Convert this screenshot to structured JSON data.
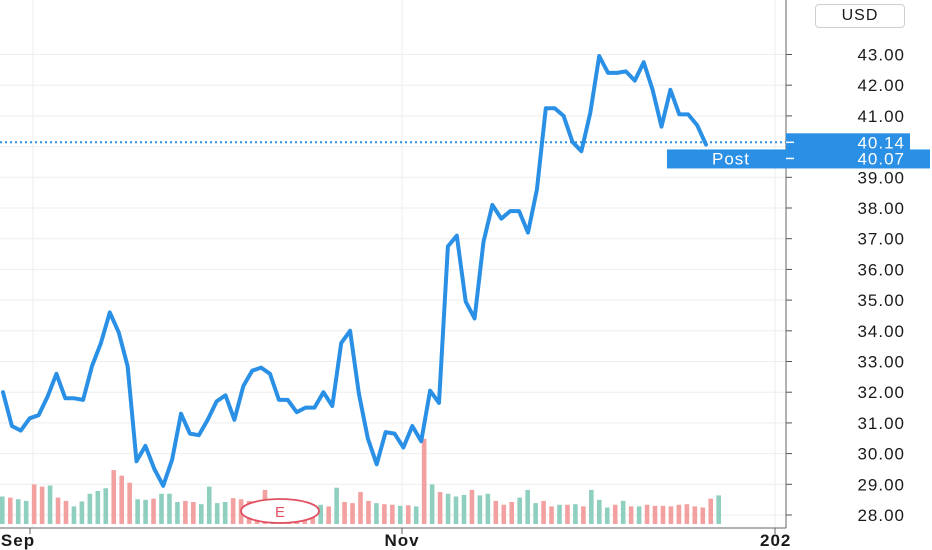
{
  "currency": "USD",
  "chart_data": {
    "type": "line",
    "y_ticks": [
      "28.00",
      "29.00",
      "30.00",
      "31.00",
      "32.00",
      "33.00",
      "34.00",
      "35.00",
      "36.00",
      "37.00",
      "38.00",
      "39.00",
      "40.00",
      "41.00",
      "42.00",
      "43.00"
    ],
    "ylim": [
      27.6,
      44.3
    ],
    "x_ticks": [
      "Sep",
      "Nov",
      "202"
    ],
    "grid": true,
    "series": [
      {
        "values": [
          32.0,
          30.9,
          30.75,
          31.15,
          31.25,
          31.85,
          32.6,
          31.8,
          31.8,
          31.75,
          32.85,
          33.6,
          34.6,
          33.95,
          32.85,
          29.75,
          30.25,
          29.5,
          28.95,
          29.8,
          31.3,
          30.65,
          30.6,
          31.1,
          31.7,
          31.9,
          31.1,
          32.2,
          32.7,
          32.8,
          32.6,
          31.75,
          31.75,
          31.35,
          31.5,
          31.5,
          32.0,
          31.55,
          33.6,
          34.0,
          31.95,
          30.5,
          29.65,
          30.7,
          30.65,
          30.2,
          30.9,
          30.4,
          32.05,
          31.65,
          36.75,
          37.1,
          34.95,
          34.4,
          36.9,
          38.1,
          37.65,
          37.9,
          37.9,
          37.2,
          38.6,
          41.25,
          41.25,
          41.0,
          40.15,
          39.85,
          41.1,
          42.95,
          42.4,
          42.4,
          42.45,
          42.15,
          42.75,
          41.85,
          40.65,
          41.85,
          41.05,
          41.05,
          40.7,
          40.07
        ],
        "color": "#2a90e6"
      }
    ],
    "volume": [
      {
        "v": 0.5,
        "c": "#8fcfbf"
      },
      {
        "v": 0.48,
        "c": "#f2a0a0"
      },
      {
        "v": 0.45,
        "c": "#8fcfbf"
      },
      {
        "v": 0.42,
        "c": "#8fcfbf"
      },
      {
        "v": 0.72,
        "c": "#f2a0a0"
      },
      {
        "v": 0.68,
        "c": "#f2a0a0"
      },
      {
        "v": 0.7,
        "c": "#8fcfbf"
      },
      {
        "v": 0.48,
        "c": "#f2a0a0"
      },
      {
        "v": 0.42,
        "c": "#f2a0a0"
      },
      {
        "v": 0.32,
        "c": "#8fcfbf"
      },
      {
        "v": 0.41,
        "c": "#8fcfbf"
      },
      {
        "v": 0.55,
        "c": "#8fcfbf"
      },
      {
        "v": 0.6,
        "c": "#8fcfbf"
      },
      {
        "v": 0.65,
        "c": "#8fcfbf"
      },
      {
        "v": 0.98,
        "c": "#f2a0a0"
      },
      {
        "v": 0.88,
        "c": "#f2a0a0"
      },
      {
        "v": 0.75,
        "c": "#f2a0a0"
      },
      {
        "v": 0.45,
        "c": "#8fcfbf"
      },
      {
        "v": 0.44,
        "c": "#8fcfbf"
      },
      {
        "v": 0.46,
        "c": "#f2a0a0"
      },
      {
        "v": 0.55,
        "c": "#8fcfbf"
      },
      {
        "v": 0.55,
        "c": "#8fcfbf"
      },
      {
        "v": 0.4,
        "c": "#8fcfbf"
      },
      {
        "v": 0.42,
        "c": "#f2a0a0"
      },
      {
        "v": 0.4,
        "c": "#f2a0a0"
      },
      {
        "v": 0.36,
        "c": "#8fcfbf"
      },
      {
        "v": 0.68,
        "c": "#8fcfbf"
      },
      {
        "v": 0.38,
        "c": "#8fcfbf"
      },
      {
        "v": 0.4,
        "c": "#8fcfbf"
      },
      {
        "v": 0.47,
        "c": "#f2a0a0"
      },
      {
        "v": 0.45,
        "c": "#f2a0a0"
      },
      {
        "v": 0.42,
        "c": "#f2a0a0"
      },
      {
        "v": 0.38,
        "c": "#f2a0a0"
      },
      {
        "v": 0.62,
        "c": "#f2a0a0"
      },
      {
        "v": 0.4,
        "c": "#8fcfbf"
      },
      {
        "v": 0.38,
        "c": "#f2a0a0"
      },
      {
        "v": 0.33,
        "c": "#f2a0a0"
      },
      {
        "v": 0.35,
        "c": "#f2a0a0"
      },
      {
        "v": 0.38,
        "c": "#f2a0a0"
      },
      {
        "v": 0.36,
        "c": "#f2a0a0"
      },
      {
        "v": 0.35,
        "c": "#8fcfbf"
      },
      {
        "v": 0.32,
        "c": "#f2a0a0"
      },
      {
        "v": 0.66,
        "c": "#8fcfbf"
      },
      {
        "v": 0.4,
        "c": "#f2a0a0"
      },
      {
        "v": 0.38,
        "c": "#f2a0a0"
      },
      {
        "v": 0.58,
        "c": "#f2a0a0"
      },
      {
        "v": 0.42,
        "c": "#f2a0a0"
      },
      {
        "v": 0.38,
        "c": "#8fcfbf"
      },
      {
        "v": 0.36,
        "c": "#f2a0a0"
      },
      {
        "v": 0.35,
        "c": "#f2a0a0"
      },
      {
        "v": 0.33,
        "c": "#8fcfbf"
      },
      {
        "v": 0.34,
        "c": "#f2a0a0"
      },
      {
        "v": 0.32,
        "c": "#8fcfbf"
      },
      {
        "v": 1.55,
        "c": "#f2a0a0"
      },
      {
        "v": 0.72,
        "c": "#8fcfbf"
      },
      {
        "v": 0.58,
        "c": "#f2a0a0"
      },
      {
        "v": 0.55,
        "c": "#8fcfbf"
      },
      {
        "v": 0.5,
        "c": "#8fcfbf"
      },
      {
        "v": 0.53,
        "c": "#8fcfbf"
      },
      {
        "v": 0.62,
        "c": "#f2a0a0"
      },
      {
        "v": 0.52,
        "c": "#8fcfbf"
      },
      {
        "v": 0.55,
        "c": "#8fcfbf"
      },
      {
        "v": 0.42,
        "c": "#f2a0a0"
      },
      {
        "v": 0.35,
        "c": "#f2a0a0"
      },
      {
        "v": 0.4,
        "c": "#f2a0a0"
      },
      {
        "v": 0.48,
        "c": "#8fcfbf"
      },
      {
        "v": 0.62,
        "c": "#8fcfbf"
      },
      {
        "v": 0.38,
        "c": "#8fcfbf"
      },
      {
        "v": 0.42,
        "c": "#f2a0a0"
      },
      {
        "v": 0.32,
        "c": "#f2a0a0"
      },
      {
        "v": 0.35,
        "c": "#8fcfbf"
      },
      {
        "v": 0.35,
        "c": "#f2a0a0"
      },
      {
        "v": 0.36,
        "c": "#8fcfbf"
      },
      {
        "v": 0.32,
        "c": "#f2a0a0"
      },
      {
        "v": 0.62,
        "c": "#8fcfbf"
      },
      {
        "v": 0.44,
        "c": "#8fcfbf"
      },
      {
        "v": 0.3,
        "c": "#8fcfbf"
      },
      {
        "v": 0.35,
        "c": "#f2a0a0"
      },
      {
        "v": 0.42,
        "c": "#8fcfbf"
      },
      {
        "v": 0.32,
        "c": "#f2a0a0"
      },
      {
        "v": 0.32,
        "c": "#8fcfbf"
      },
      {
        "v": 0.35,
        "c": "#f2a0a0"
      },
      {
        "v": 0.33,
        "c": "#f2a0a0"
      },
      {
        "v": 0.33,
        "c": "#f2a0a0"
      },
      {
        "v": 0.32,
        "c": "#f2a0a0"
      },
      {
        "v": 0.35,
        "c": "#f2a0a0"
      },
      {
        "v": 0.36,
        "c": "#f2a0a0"
      },
      {
        "v": 0.32,
        "c": "#f2a0a0"
      },
      {
        "v": 0.3,
        "c": "#f2a0a0"
      },
      {
        "v": 0.46,
        "c": "#f2a0a0"
      },
      {
        "v": 0.52,
        "c": "#8fcfbf"
      }
    ],
    "event_marker": "E",
    "last_price": {
      "value": 40.14,
      "label": "40.14"
    },
    "post_price": {
      "value": 40.07,
      "label": "40.07",
      "tag": "Post"
    },
    "line_color": "#2a90e6",
    "label_color": "#2a90e6"
  }
}
